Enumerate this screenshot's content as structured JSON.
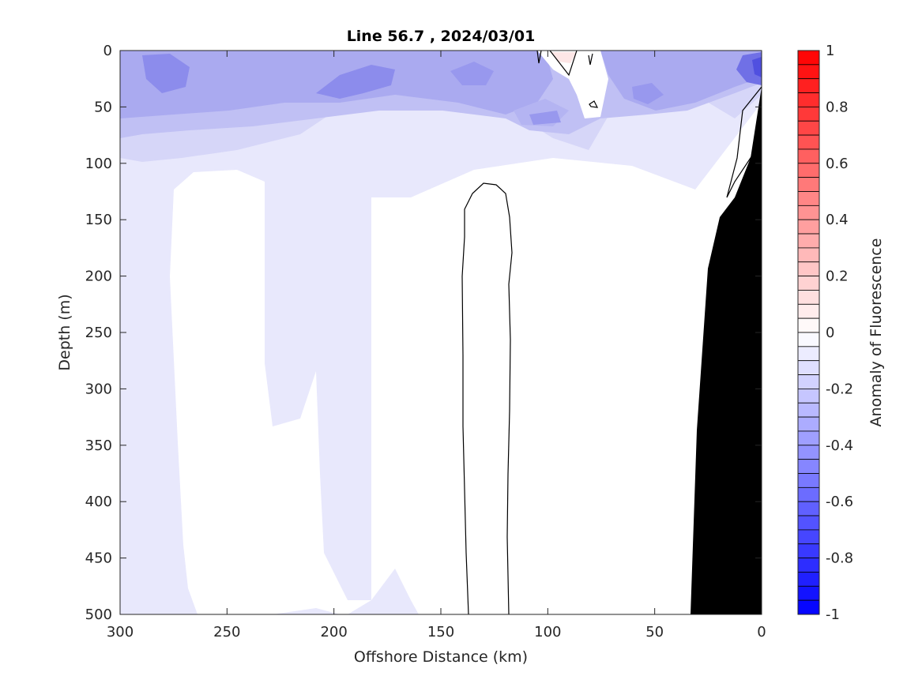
{
  "chart_data": {
    "type": "heatmap",
    "subtype": "filled contour section",
    "title": "Line 56.7 , 2024/03/01",
    "xlabel": "Offshore Distance (km)",
    "ylabel": "Depth (m)",
    "xlim": [
      300,
      0
    ],
    "x_reversed": true,
    "ylim": [
      0,
      500
    ],
    "y_reversed": true,
    "xticks": [
      "300",
      "250",
      "200",
      "150",
      "100",
      "50",
      "0"
    ],
    "yticks": [
      "0",
      "50",
      "100",
      "150",
      "200",
      "250",
      "300",
      "350",
      "400",
      "450",
      "500"
    ],
    "colorbar": {
      "label": "Anomaly of Fluorescence",
      "range": [
        -1,
        1
      ],
      "ticks": [
        "1",
        "0.8",
        "0.6",
        "0.4",
        "0.2",
        "0",
        "-0.2",
        "-0.4",
        "-0.6",
        "-0.8",
        "-1"
      ],
      "levels": 40,
      "colormap": "blue-white-red",
      "low_color": "#0000ff",
      "mid_color": "#ffffff",
      "high_color": "#ff0000"
    },
    "grid": false,
    "bathymetry_color": "#000000",
    "zero_contour_color": "#000000",
    "features": [
      {
        "name": "surface negative anomaly band",
        "depth_range_m": [
          0,
          90
        ],
        "x_range_km": [
          300,
          0
        ],
        "anomaly_min": -0.45
      },
      {
        "name": "strongest negative core near coast",
        "x_km": 3,
        "depth_m": 15,
        "anomaly": -0.65
      },
      {
        "name": "weak negative columns at depth",
        "anomaly": -0.05
      },
      {
        "name": "near-zero positive patch",
        "x_km": 90,
        "depth_range_m": [
          0,
          20
        ],
        "anomaly": 0.05
      }
    ]
  }
}
